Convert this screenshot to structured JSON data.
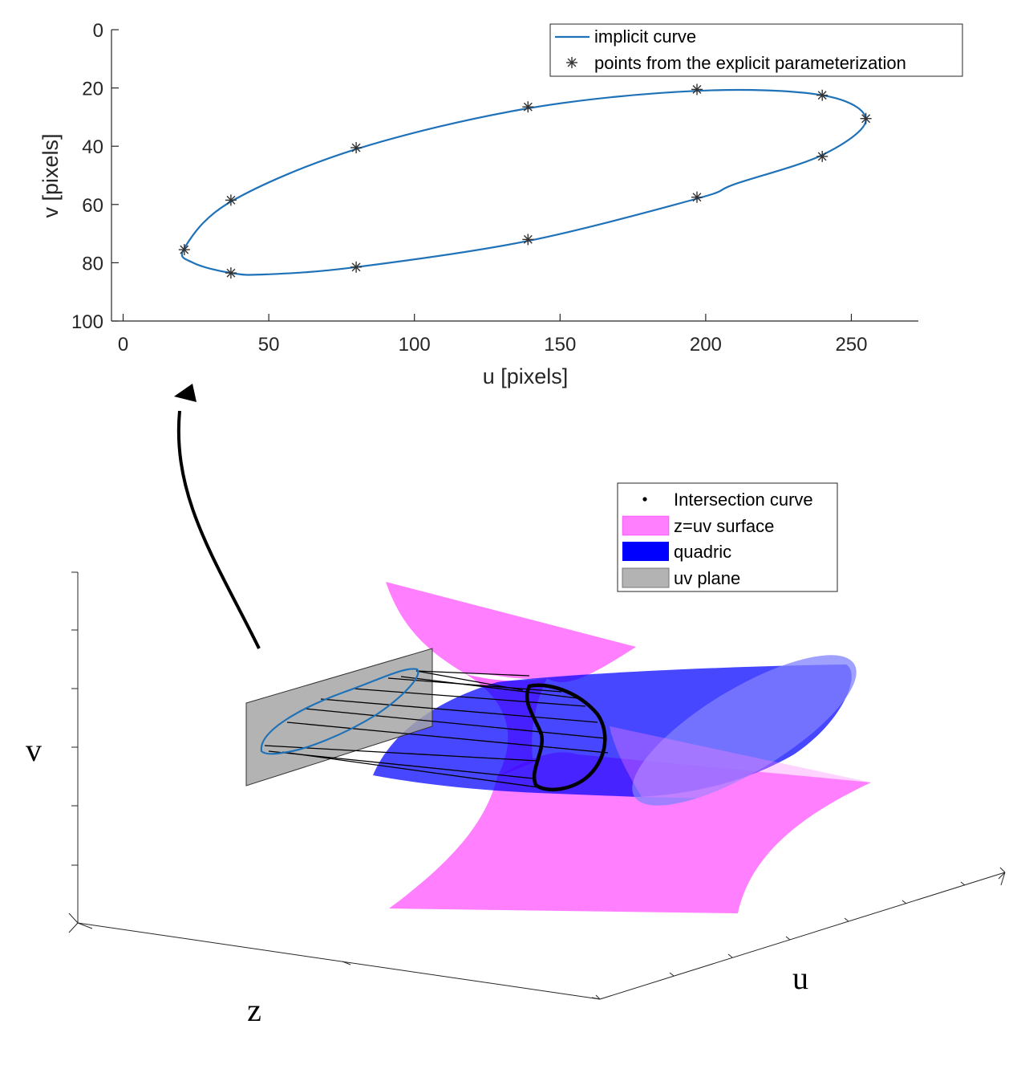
{
  "chart_data": [
    {
      "type": "line",
      "title": "",
      "xlabel": "u [pixels]",
      "ylabel": "v [pixels]",
      "xlim": [
        -4,
        273
      ],
      "ylim": [
        100,
        0
      ],
      "y_reversed": true,
      "grid": false,
      "legend_placement": "top-right",
      "xticks": [
        "0",
        "50",
        "100",
        "150",
        "200",
        "250"
      ],
      "yticks": [
        "0",
        "20",
        "40",
        "60",
        "80",
        "100"
      ],
      "series": [
        {
          "name": "implicit curve",
          "style": "line",
          "color": "#1f72b8",
          "x": [
            21,
            24,
            37,
            49,
            80,
            139,
            197,
            210,
            240,
            255,
            240,
            197,
            139,
            80,
            37,
            21
          ],
          "y": [
            75,
            80,
            83.5,
            84,
            81.5,
            72.5,
            58,
            53,
            43,
            31,
            22.5,
            21,
            27,
            41,
            59,
            75
          ]
        },
        {
          "name": "points from the explicit parameterization",
          "style": "marker-asterisk",
          "color": "#333333",
          "x": [
            21,
            37,
            37,
            80,
            80,
            139,
            139,
            197,
            197,
            240,
            240,
            255
          ],
          "y": [
            75.5,
            58.5,
            83.5,
            40.5,
            81.5,
            26.5,
            72,
            20.5,
            57.5,
            22.5,
            43.5,
            30.5
          ]
        }
      ]
    },
    {
      "type": "surface-3d",
      "title": "",
      "axis_labels": {
        "v": "v",
        "z": "z",
        "u": "u"
      },
      "legend_placement": "top-right",
      "legend": [
        {
          "name": "Intersection curve",
          "style": "dot",
          "color": "#000000"
        },
        {
          "name": "z=uv surface",
          "style": "patch",
          "color": "#ff00ff"
        },
        {
          "name": "quadric",
          "style": "patch",
          "color": "#0000ff"
        },
        {
          "name": "uv plane",
          "style": "patch",
          "color": "#b3b3b3"
        }
      ],
      "colors": {
        "surface": "#ff00ff",
        "quadric": "#0000ff",
        "plane": "#b3b3b3",
        "curve": "#000000",
        "projected_curve": "#1f72b8"
      }
    }
  ]
}
